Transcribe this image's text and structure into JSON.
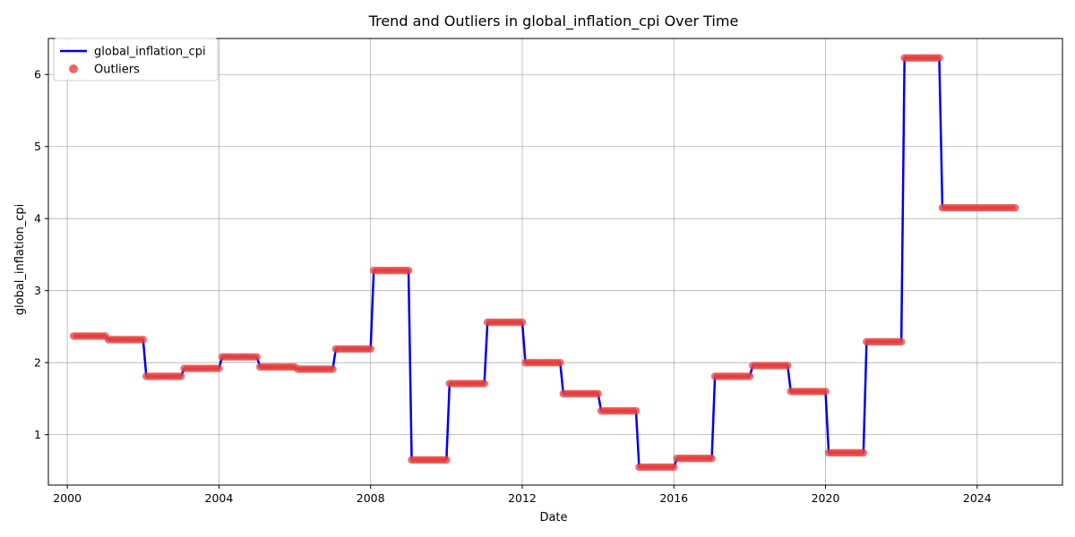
{
  "chart_data": {
    "type": "line",
    "title": "Trend and Outliers in global_inflation_cpi Over Time",
    "xlabel": "Date",
    "ylabel": "global_inflation_cpi",
    "x_range": [
      1999.5,
      2026.25
    ],
    "ylim": [
      0.3,
      6.5
    ],
    "x_ticks": [
      2000,
      2004,
      2008,
      2012,
      2016,
      2020,
      2024
    ],
    "x_tick_labels": [
      "2000",
      "2004",
      "2008",
      "2012",
      "2016",
      "2020",
      "2024"
    ],
    "y_ticks": [
      1,
      2,
      3,
      4,
      5,
      6
    ],
    "y_tick_labels": [
      "1",
      "2",
      "3",
      "4",
      "5",
      "6"
    ],
    "grid": true,
    "legend_position": "top-left",
    "series": [
      {
        "name": "global_inflation_cpi",
        "kind": "line",
        "color": "#0000ee",
        "years": [
          2000,
          2001,
          2002,
          2003,
          2004,
          2005,
          2006,
          2007,
          2008,
          2009,
          2010,
          2011,
          2012,
          2013,
          2014,
          2015,
          2016,
          2017,
          2018,
          2019,
          2020,
          2021,
          2022,
          2023,
          2024
        ],
        "yearly_values": [
          2.37,
          2.32,
          1.81,
          1.92,
          2.08,
          1.94,
          1.91,
          2.19,
          3.28,
          0.65,
          1.71,
          2.56,
          2.0,
          1.57,
          1.33,
          0.55,
          0.67,
          1.81,
          1.96,
          1.6,
          0.75,
          2.29,
          6.23,
          4.15,
          4.15
        ]
      },
      {
        "name": "Outliers",
        "kind": "scatter",
        "color": "#e8413e",
        "note_points": "one point per month, same values as the line"
      }
    ]
  }
}
